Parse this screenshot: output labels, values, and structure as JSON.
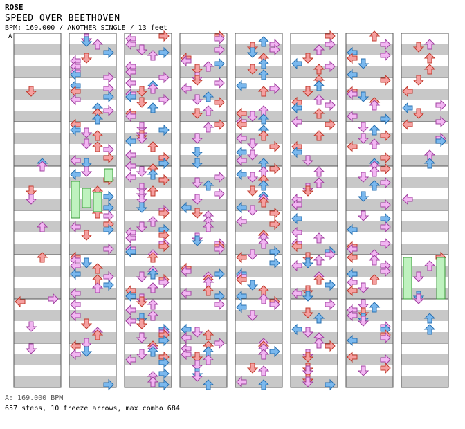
{
  "artist": "ROSE",
  "title": "SPEED OVER BEETHOVEN",
  "meta": "BPM: 169.000 / ANOTHER SINGLE / 13 feet",
  "bpm_marker": "A",
  "bpm_footer": "A: 169.000 BPM",
  "stats": "657 steps, 10 freeze arrows, max combo 684",
  "chart": {
    "columns": 8,
    "measures_per_column": 8,
    "lanes": [
      "left",
      "down",
      "up",
      "right"
    ],
    "colors": {
      "quarter": "#f5a0a0",
      "quarter_stroke": "#c0392b",
      "eighth": "#7ab8ee",
      "eighth_stroke": "#2870b0",
      "sixteenth": "#f2b6f2",
      "sixteenth_stroke": "#a040a0",
      "freeze": "#bff2bf",
      "freeze_stroke": "#3a9a3a",
      "band": "#c8c8c8"
    }
  }
}
